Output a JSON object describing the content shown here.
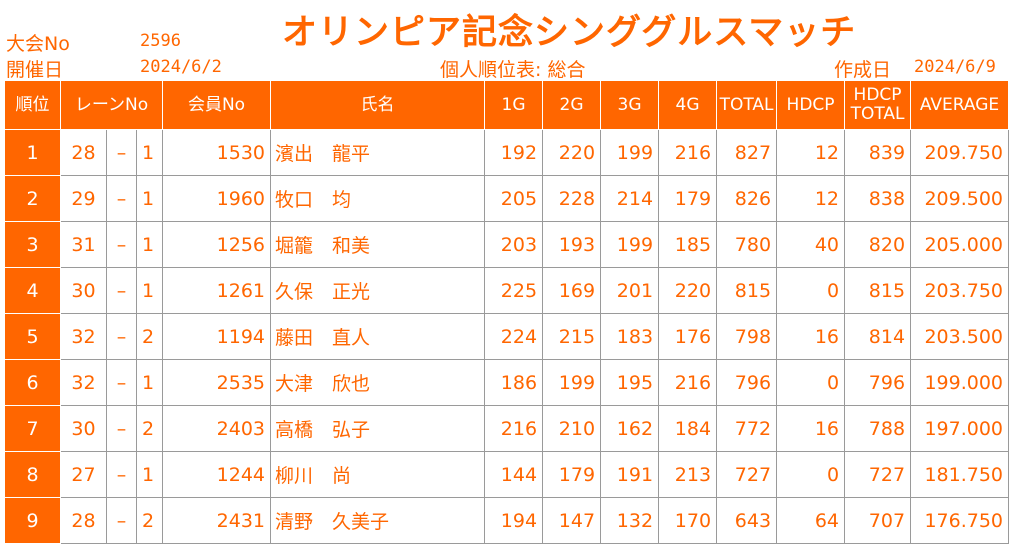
{
  "title": "オリンピア記念シンググルスマッチ",
  "meta": {
    "tournament_label": "大会No",
    "tournament_value": "2596",
    "date_label": "開催日",
    "date_value": "2024/6/2",
    "table_name": "個人順位表: 総合",
    "created_label": "作成日",
    "created_value": "2024/6/9"
  },
  "headers": {
    "rank": "順位",
    "lane": "レーンNo",
    "member": "会員No",
    "name": "氏名",
    "g1": "1G",
    "g2": "2G",
    "g3": "3G",
    "g4": "4G",
    "total": "TOTAL",
    "hdcp": "HDCP",
    "hdcp_total_1": "HDCP",
    "hdcp_total_2": "TOTAL",
    "average": "AVERAGE"
  },
  "rows": [
    {
      "rank": "1",
      "lane": "28",
      "dash": "–",
      "pos": "1",
      "member": "1530",
      "name": "濱出　龍平",
      "g1": "192",
      "g2": "220",
      "g3": "199",
      "g4": "216",
      "total": "827",
      "hdcp": "12",
      "hdcp_total": "839",
      "average": "209.750"
    },
    {
      "rank": "2",
      "lane": "29",
      "dash": "–",
      "pos": "1",
      "member": "1960",
      "name": "牧口　均",
      "g1": "205",
      "g2": "228",
      "g3": "214",
      "g4": "179",
      "total": "826",
      "hdcp": "12",
      "hdcp_total": "838",
      "average": "209.500"
    },
    {
      "rank": "3",
      "lane": "31",
      "dash": "–",
      "pos": "1",
      "member": "1256",
      "name": "堀籠　和美",
      "g1": "203",
      "g2": "193",
      "g3": "199",
      "g4": "185",
      "total": "780",
      "hdcp": "40",
      "hdcp_total": "820",
      "average": "205.000"
    },
    {
      "rank": "4",
      "lane": "30",
      "dash": "–",
      "pos": "1",
      "member": "1261",
      "name": "久保　正光",
      "g1": "225",
      "g2": "169",
      "g3": "201",
      "g4": "220",
      "total": "815",
      "hdcp": "0",
      "hdcp_total": "815",
      "average": "203.750"
    },
    {
      "rank": "5",
      "lane": "32",
      "dash": "–",
      "pos": "2",
      "member": "1194",
      "name": "藤田　直人",
      "g1": "224",
      "g2": "215",
      "g3": "183",
      "g4": "176",
      "total": "798",
      "hdcp": "16",
      "hdcp_total": "814",
      "average": "203.500"
    },
    {
      "rank": "6",
      "lane": "32",
      "dash": "–",
      "pos": "1",
      "member": "2535",
      "name": "大津　欣也",
      "g1": "186",
      "g2": "199",
      "g3": "195",
      "g4": "216",
      "total": "796",
      "hdcp": "0",
      "hdcp_total": "796",
      "average": "199.000"
    },
    {
      "rank": "7",
      "lane": "30",
      "dash": "–",
      "pos": "2",
      "member": "2403",
      "name": "高橋　弘子",
      "g1": "216",
      "g2": "210",
      "g3": "162",
      "g4": "184",
      "total": "772",
      "hdcp": "16",
      "hdcp_total": "788",
      "average": "197.000"
    },
    {
      "rank": "8",
      "lane": "27",
      "dash": "–",
      "pos": "1",
      "member": "1244",
      "name": "柳川　尚",
      "g1": "144",
      "g2": "179",
      "g3": "191",
      "g4": "213",
      "total": "727",
      "hdcp": "0",
      "hdcp_total": "727",
      "average": "181.750"
    },
    {
      "rank": "9",
      "lane": "28",
      "dash": "–",
      "pos": "2",
      "member": "2431",
      "name": "清野　久美子",
      "g1": "194",
      "g2": "147",
      "g3": "132",
      "g4": "170",
      "total": "643",
      "hdcp": "64",
      "hdcp_total": "707",
      "average": "176.750"
    }
  ],
  "colors": {
    "accent": "#ff6600",
    "header_text": "#ffffff",
    "grid": "#9a9a9a"
  }
}
